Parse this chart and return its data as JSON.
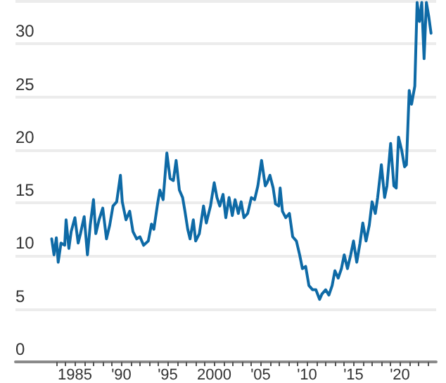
{
  "chart_data": {
    "type": "line",
    "x": [
      1982.5,
      1982.75,
      1983,
      1983.2,
      1983.5,
      1983.9,
      1984.05,
      1984.35,
      1984.6,
      1985,
      1985.35,
      1985.6,
      1986,
      1986.35,
      1986.65,
      1987,
      1987.25,
      1987.6,
      1988,
      1988.4,
      1988.75,
      1989.1,
      1989.5,
      1989.9,
      1990.1,
      1990.5,
      1990.9,
      1991.25,
      1991.65,
      1992,
      1992.4,
      1992.9,
      1993.25,
      1993.5,
      1993.9,
      1994.15,
      1994.5,
      1994.9,
      1995.25,
      1995.6,
      1995.9,
      1996.25,
      1996.6,
      1996.85,
      1997.15,
      1997.4,
      1997.75,
      1998,
      1998.4,
      1998.85,
      1999.15,
      1999.6,
      2000,
      2000.3,
      2000.6,
      2000.95,
      2001.25,
      2001.6,
      2001.95,
      2002.25,
      2002.6,
      2002.9,
      2003.2,
      2003.6,
      2004,
      2004.35,
      2004.7,
      2005.1,
      2005.5,
      2005.7,
      2006,
      2006.35,
      2006.6,
      2006.95,
      2007.1,
      2007.35,
      2007.7,
      2008.1,
      2008.45,
      2008.85,
      2009.2,
      2009.5,
      2009.85,
      2010.2,
      2010.6,
      2010.95,
      2011.35,
      2011.6,
      2012,
      2012.35,
      2012.7,
      2013,
      2013.35,
      2013.7,
      2014,
      2014.35,
      2014.7,
      2015,
      2015.35,
      2015.7,
      2016,
      2016.35,
      2016.7,
      2017,
      2017.35,
      2017.6,
      2018,
      2018.35,
      2018.6,
      2019,
      2019.35,
      2019.6,
      2019.85,
      2020.2,
      2020.5,
      2020.7,
      2021,
      2021.25,
      2021.6,
      2021.85,
      2022.1,
      2022.35,
      2022.6,
      2022.85,
      2023.1,
      2023.35
    ],
    "values": [
      11.6,
      10.1,
      11.7,
      9.4,
      11.2,
      11.0,
      13.4,
      10.7,
      12.3,
      13.6,
      11.2,
      12.1,
      13.7,
      10.1,
      12.9,
      15.3,
      12.1,
      13.4,
      14.5,
      11.6,
      12.9,
      14.7,
      15.1,
      17.6,
      15.1,
      13.4,
      14.2,
      12.3,
      11.6,
      11.8,
      11.0,
      11.4,
      13.0,
      12.5,
      14.9,
      16.2,
      15.3,
      19.7,
      17.3,
      17.1,
      19.0,
      16.2,
      15.5,
      14.2,
      12.5,
      11.6,
      13.4,
      11.4,
      12.1,
      14.7,
      13.1,
      14.7,
      16.9,
      15.5,
      14.7,
      15.8,
      13.6,
      15.5,
      13.8,
      15.3,
      14.0,
      15.1,
      13.6,
      14.0,
      15.5,
      15.3,
      16.6,
      19.0,
      16.6,
      16.9,
      17.6,
      16.4,
      14.9,
      14.7,
      16.4,
      14.2,
      13.6,
      14.0,
      11.8,
      11.4,
      10.1,
      8.8,
      9.0,
      7.2,
      6.8,
      6.8,
      5.9,
      6.4,
      6.8,
      6.3,
      7.2,
      8.6,
      7.9,
      8.8,
      10.1,
      8.8,
      10.1,
      11.4,
      9.4,
      11.2,
      13.1,
      11.4,
      12.9,
      15.1,
      14.0,
      15.5,
      18.6,
      15.5,
      16.6,
      20.6,
      16.6,
      16.4,
      21.2,
      19.9,
      18.4,
      18.6,
      25.6,
      24.3,
      26.0,
      33.9,
      32.1,
      33.9,
      28.6,
      33.9,
      32.6,
      31.0
    ],
    "color": "#0e6aa6",
    "xlim": [
      1978.6,
      2023.9
    ],
    "xticks": [
      {
        "value": 1983,
        "label": null
      },
      {
        "value": 1984,
        "label": null
      },
      {
        "value": 1985,
        "label": "1985"
      },
      {
        "value": 1986,
        "label": null
      },
      {
        "value": 1987,
        "label": null
      },
      {
        "value": 1988,
        "label": null
      },
      {
        "value": 1989,
        "label": null
      },
      {
        "value": 1990,
        "label": "'90"
      },
      {
        "value": 1991,
        "label": null
      },
      {
        "value": 1992,
        "label": null
      },
      {
        "value": 1993,
        "label": null
      },
      {
        "value": 1994,
        "label": null
      },
      {
        "value": 1995,
        "label": "'95"
      },
      {
        "value": 1996,
        "label": null
      },
      {
        "value": 1997,
        "label": null
      },
      {
        "value": 1998,
        "label": null
      },
      {
        "value": 1999,
        "label": null
      },
      {
        "value": 2000,
        "label": "2000"
      },
      {
        "value": 2001,
        "label": null
      },
      {
        "value": 2002,
        "label": null
      },
      {
        "value": 2003,
        "label": null
      },
      {
        "value": 2004,
        "label": null
      },
      {
        "value": 2005,
        "label": "'05"
      },
      {
        "value": 2006,
        "label": null
      },
      {
        "value": 2007,
        "label": null
      },
      {
        "value": 2008,
        "label": null
      },
      {
        "value": 2009,
        "label": null
      },
      {
        "value": 2010,
        "label": "'10"
      },
      {
        "value": 2011,
        "label": null
      },
      {
        "value": 2012,
        "label": null
      },
      {
        "value": 2013,
        "label": null
      },
      {
        "value": 2014,
        "label": null
      },
      {
        "value": 2015,
        "label": "'15"
      },
      {
        "value": 2016,
        "label": null
      },
      {
        "value": 2017,
        "label": null
      },
      {
        "value": 2018,
        "label": null
      },
      {
        "value": 2019,
        "label": null
      },
      {
        "value": 2020,
        "label": "'20"
      },
      {
        "value": 2021,
        "label": null
      },
      {
        "value": 2022,
        "label": null
      },
      {
        "value": 2023,
        "label": null
      }
    ],
    "ylim": [
      0,
      34
    ],
    "yticks": [
      0,
      5,
      10,
      15,
      20,
      25,
      30
    ],
    "grid": "y",
    "marker": "none",
    "line_style": "solid"
  }
}
